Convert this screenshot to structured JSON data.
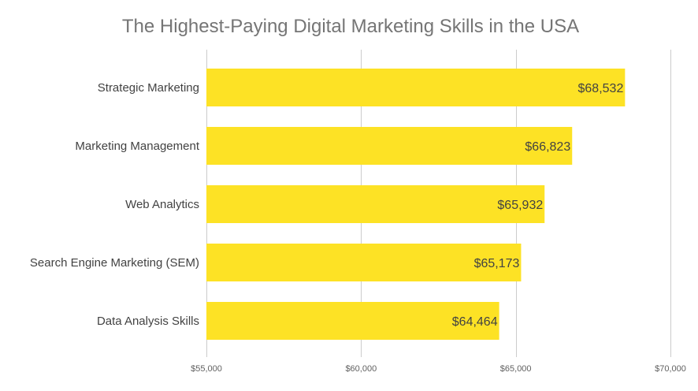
{
  "chart_data": {
    "type": "bar",
    "orientation": "horizontal",
    "title": "The Highest-Paying Digital Marketing Skills in the USA",
    "xlabel": "",
    "ylabel": "",
    "categories": [
      "Strategic Marketing",
      "Marketing Management",
      "Web Analytics",
      "Search Engine Marketing (SEM)",
      "Data Analysis Skills"
    ],
    "values": [
      68532,
      66823,
      65932,
      65173,
      64464
    ],
    "value_labels": [
      "$68,532",
      "$66,823",
      "$65,932",
      "$65,173",
      "$64,464"
    ],
    "xlim": [
      55000,
      70000
    ],
    "xticks": [
      55000,
      60000,
      65000,
      70000
    ],
    "xtick_labels": [
      "$55,000",
      "$60,000",
      "$65,000",
      "$70,000"
    ],
    "grid": true,
    "legend": "none",
    "colors": {
      "bar": "#FDE225",
      "grid": "#CCCCCC",
      "title": "#757575",
      "text": "#424242"
    }
  }
}
